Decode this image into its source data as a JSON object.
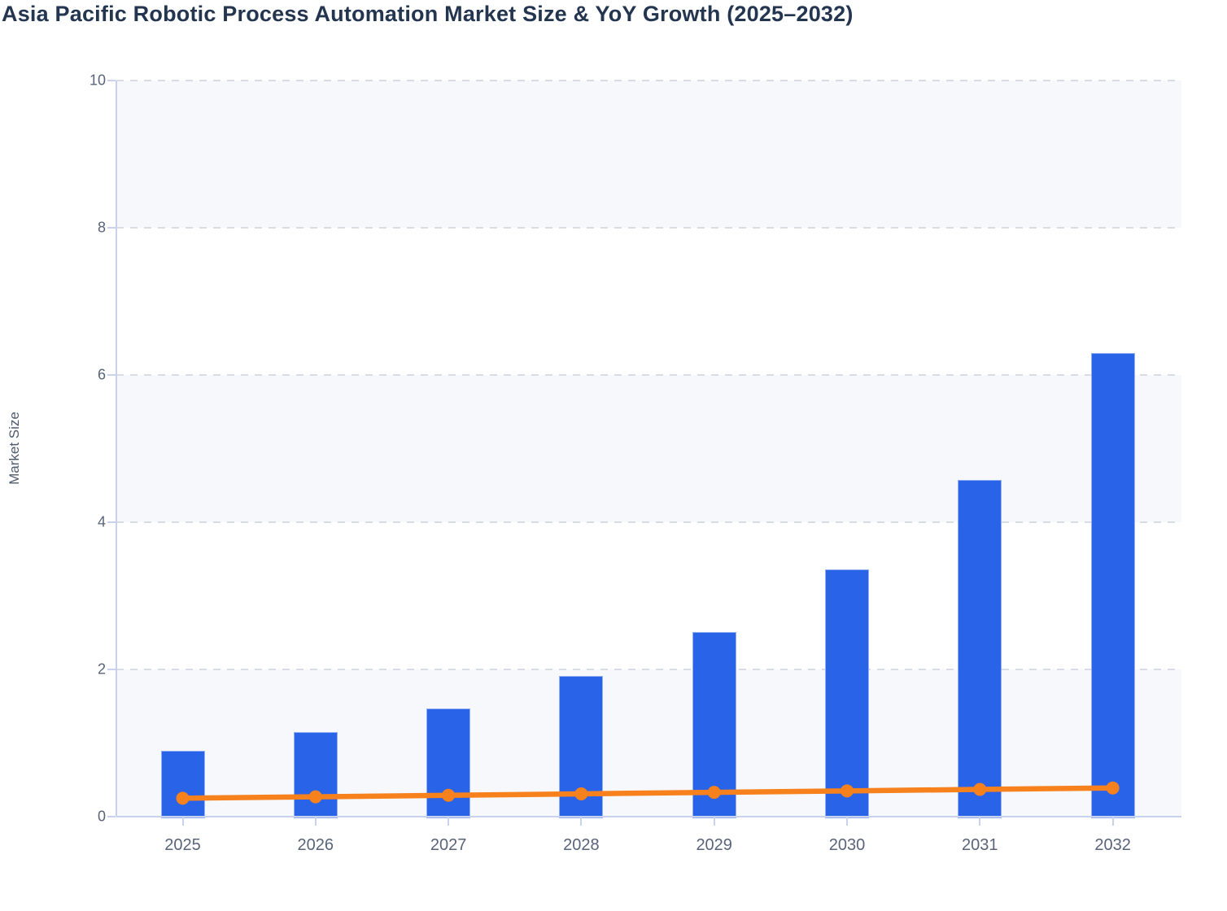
{
  "chart_data": {
    "type": "bar",
    "subtype": "bar-line-combo",
    "title": "Asia Pacific Robotic Process Automation Market Size & YoY Growth (2025–2032)",
    "xlabel": "",
    "ylabel": "Market Size",
    "categories": [
      "2025",
      "2026",
      "2027",
      "2028",
      "2029",
      "2030",
      "2031",
      "2032"
    ],
    "series": [
      {
        "name": "Market Size",
        "type": "bar",
        "color": "#2963e8",
        "values": [
          0.9,
          1.15,
          1.47,
          1.91,
          2.51,
          3.36,
          4.57,
          6.3
        ]
      },
      {
        "name": "YoY Growth",
        "type": "line",
        "color": "#f7811d",
        "values": [
          0.25,
          0.27,
          0.29,
          0.31,
          0.33,
          0.35,
          0.37,
          0.39
        ]
      }
    ],
    "ylim": [
      0,
      10
    ],
    "yticks": [
      0,
      2,
      4,
      6,
      8,
      10
    ],
    "grid": "dashed horizontal gridlines at y ticks",
    "legend": "none",
    "plot_band_ranges": [
      [
        0,
        2
      ],
      [
        4,
        6
      ],
      [
        8,
        10
      ]
    ]
  },
  "colors": {
    "bar_fill": "#2963e8",
    "line_stroke": "#f7811d",
    "band_fill": "#f6f8fb",
    "gridline": "#d9dce4",
    "axis_line": "#c8d2ec",
    "tick_label": "#59647a",
    "title_text": "#24364f",
    "background": "#ffffff"
  }
}
